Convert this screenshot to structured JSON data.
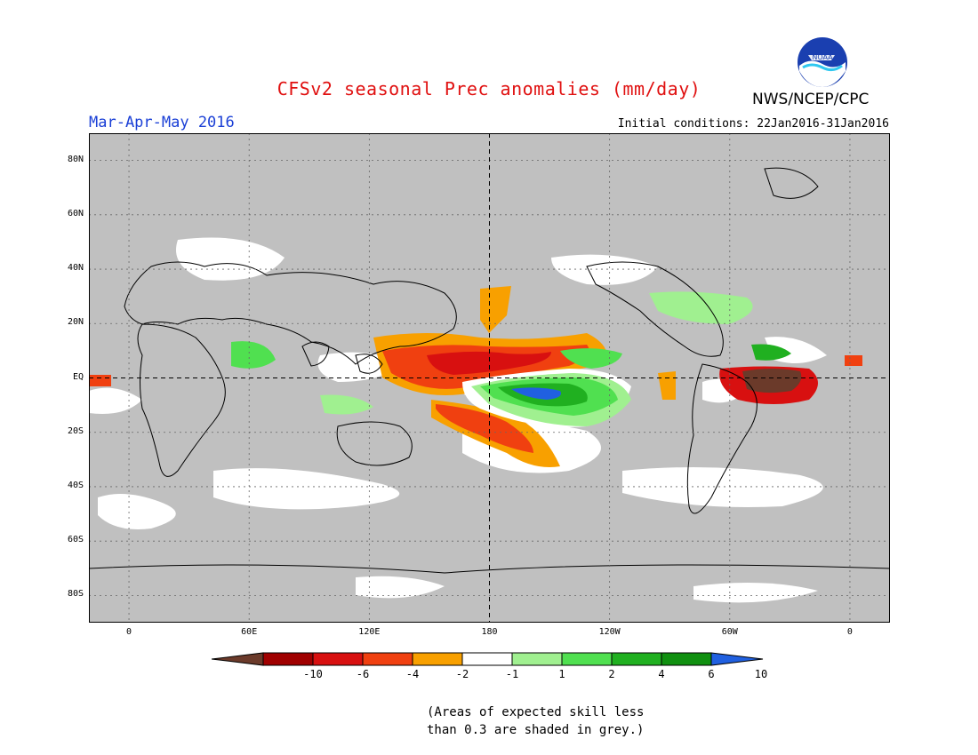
{
  "header": {
    "title": "CFSv2 seasonal Prec anomalies (mm/day)",
    "agency": "NWS/NCEP/CPC",
    "season": "Mar-Apr-May 2016",
    "initial_conditions": "Initial conditions: 22Jan2016-31Jan2016",
    "logo_text": "NOAA"
  },
  "map": {
    "lat_labels": [
      "80N",
      "60N",
      "40N",
      "20N",
      "EQ",
      "20S",
      "40S",
      "60S",
      "80S"
    ],
    "lat_values": [
      80,
      60,
      40,
      20,
      0,
      -20,
      -40,
      -60,
      -80
    ],
    "lon_labels": [
      "0",
      "60E",
      "120E",
      "180",
      "120W",
      "60W",
      "0"
    ],
    "lon_values": [
      0,
      60,
      120,
      180,
      240,
      300,
      360
    ],
    "lon_range": [
      -20,
      380
    ],
    "lat_range": [
      -90,
      90
    ],
    "colors": {
      "grey_mask": "#c0c0c0",
      "land_outline": "#000000"
    }
  },
  "colorbar": {
    "labels": [
      "-10",
      "-6",
      "-4",
      "-2",
      "-1",
      "1",
      "2",
      "4",
      "6",
      "10"
    ],
    "colors": [
      "#6b3a2a",
      "#a00000",
      "#d81010",
      "#f04010",
      "#f8a000",
      "#ffffff",
      "#a0f090",
      "#50e050",
      "#20b020",
      "#109010",
      "#2060e0"
    ]
  },
  "footnote": {
    "line1": "(Areas of expected skill less",
    "line2": "than 0.3 are shaded in grey.)"
  }
}
